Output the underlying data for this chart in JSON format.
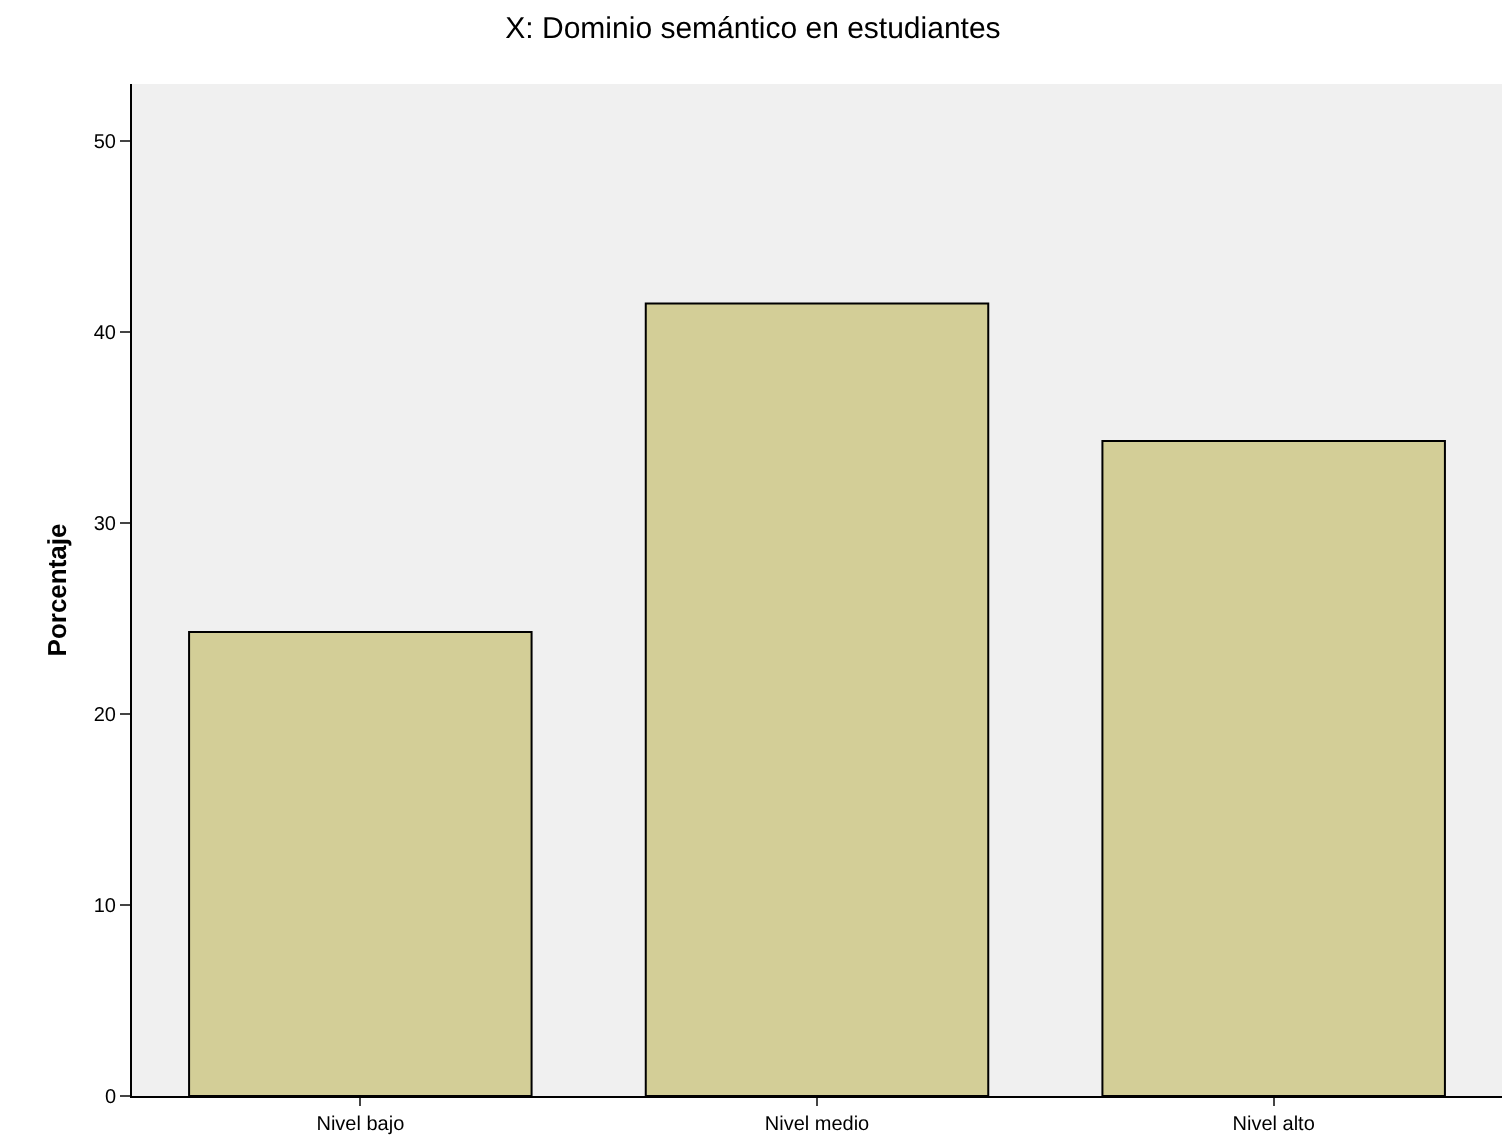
{
  "chart_data": {
    "type": "bar",
    "title": "X: Dominio semántico en estudiantes",
    "ylabel": "Porcentaje",
    "categories": [
      "Nivel bajo",
      "Nivel medio",
      "Nivel alto"
    ],
    "values": [
      24.3,
      41.5,
      34.3
    ],
    "color": "#d3ce97",
    "ylim": [
      0,
      53
    ],
    "yticks": [
      0,
      10,
      20,
      30,
      40,
      50
    ],
    "grid": false
  }
}
